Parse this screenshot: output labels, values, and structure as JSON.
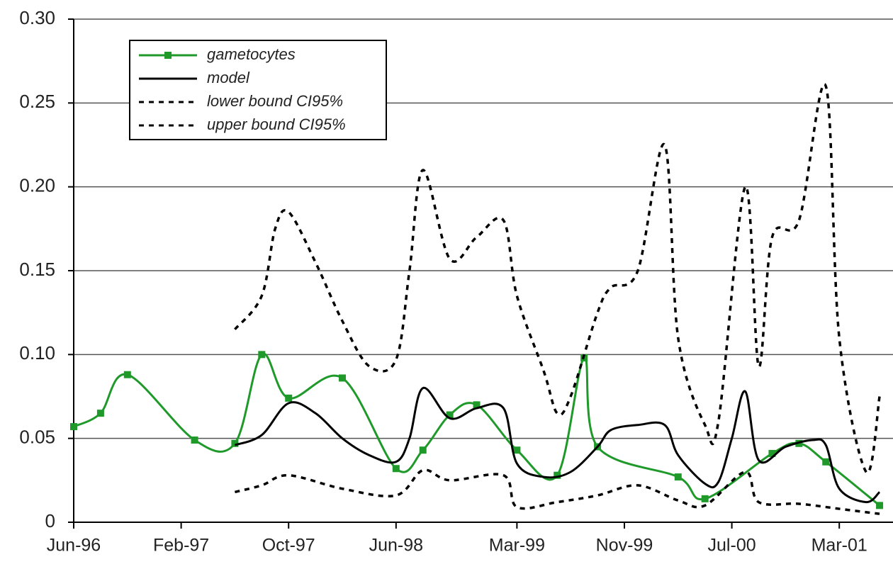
{
  "chart_data": {
    "type": "line",
    "xlim": [
      "1996-06",
      "2001-07"
    ],
    "xticks": [
      {
        "value": "1996-06",
        "label": "Jun-96"
      },
      {
        "value": "1997-02",
        "label": "Feb-97"
      },
      {
        "value": "1997-10",
        "label": "Oct-97"
      },
      {
        "value": "1998-06",
        "label": "Jun-98"
      },
      {
        "value": "1999-03",
        "label": "Mar-99"
      },
      {
        "value": "1999-11",
        "label": "Nov-99"
      },
      {
        "value": "2000-07",
        "label": "Jul-00"
      },
      {
        "value": "2001-03",
        "label": "Mar-01"
      }
    ],
    "ylim": [
      0,
      0.3
    ],
    "yticks": [
      0,
      0.05,
      {
        "value": 0.1,
        "label": "0.10"
      },
      0.15,
      {
        "value": 0.2,
        "label": "0.20"
      },
      0.25,
      {
        "value": 0.3,
        "label": "0.30"
      }
    ],
    "grid": true,
    "legend": "upper left",
    "series": [
      {
        "name": "gametocytes",
        "color": "#1f9a2a",
        "marker": "square",
        "dash": "solid",
        "x": [
          "1996-06",
          "1996-08",
          "1996-10",
          "1997-03",
          "1997-06",
          "1997-08",
          "1997-10",
          "1998-02",
          "1998-06",
          "1998-08",
          "1998-10",
          "1998-12",
          "1999-03",
          "1999-06",
          "1999-08",
          "1999-09",
          "2000-03",
          "2000-05",
          "2000-10",
          "2000-12",
          "2001-02",
          "2001-06"
        ],
        "values": [
          0.057,
          0.065,
          0.088,
          0.049,
          0.047,
          0.1,
          0.074,
          0.086,
          0.032,
          0.043,
          0.064,
          0.07,
          0.043,
          0.028,
          0.098,
          0.045,
          0.027,
          0.014,
          0.041,
          0.047,
          0.036,
          0.01
        ]
      },
      {
        "name": "model",
        "color": "#000000",
        "marker": "none",
        "dash": "solid",
        "x": [
          "1997-06",
          "1997-08",
          "1997-10",
          "1997-12",
          "1998-02",
          "1998-04",
          "1998-06",
          "1998-07",
          "1998-08",
          "1998-10",
          "1998-12",
          "1999-02",
          "1999-03",
          "1999-05",
          "1999-07",
          "1999-09",
          "1999-10",
          "1999-12",
          "2000-02",
          "2000-03",
          "2000-05",
          "2000-06",
          "2000-07",
          "2000-08",
          "2000-09",
          "2000-11",
          "2001-01",
          "2001-02",
          "2001-03",
          "2001-05",
          "2001-06"
        ],
        "values": [
          0.046,
          0.052,
          0.071,
          0.065,
          0.05,
          0.04,
          0.036,
          0.05,
          0.08,
          0.062,
          0.068,
          0.068,
          0.035,
          0.027,
          0.03,
          0.045,
          0.055,
          0.058,
          0.058,
          0.04,
          0.023,
          0.024,
          0.05,
          0.078,
          0.037,
          0.045,
          0.049,
          0.046,
          0.02,
          0.012,
          0.018
        ]
      },
      {
        "name": "lower bound CI95%",
        "color": "#000000",
        "marker": "none",
        "dash": "dotted",
        "x": [
          "1997-06",
          "1997-08",
          "1997-10",
          "1998-02",
          "1998-06",
          "1998-08",
          "1998-10",
          "1999-02",
          "1999-03",
          "1999-06",
          "1999-09",
          "1999-12",
          "2000-03",
          "2000-05",
          "2000-08",
          "2000-09",
          "2000-12",
          "2001-03",
          "2001-06"
        ],
        "values": [
          0.018,
          0.022,
          0.028,
          0.02,
          0.016,
          0.031,
          0.025,
          0.028,
          0.009,
          0.012,
          0.016,
          0.022,
          0.013,
          0.01,
          0.03,
          0.012,
          0.011,
          0.008,
          0.005
        ]
      },
      {
        "name": "upper bound CI95%",
        "color": "#000000",
        "marker": "none",
        "dash": "dotted",
        "x": [
          "1997-06",
          "1997-08",
          "1997-09",
          "1997-10",
          "1997-12",
          "1998-02",
          "1998-04",
          "1998-06",
          "1998-07",
          "1998-08",
          "1998-10",
          "1998-12",
          "1999-02",
          "1999-03",
          "1999-05",
          "1999-06",
          "1999-07",
          "1999-09",
          "1999-10",
          "1999-12",
          "2000-02",
          "2000-03",
          "2000-05",
          "2000-06",
          "2000-08",
          "2000-09",
          "2000-10",
          "2000-12",
          "2001-02",
          "2001-03",
          "2001-05",
          "2001-06"
        ],
        "values": [
          0.115,
          0.135,
          0.175,
          0.185,
          0.155,
          0.12,
          0.093,
          0.097,
          0.15,
          0.21,
          0.157,
          0.17,
          0.18,
          0.135,
          0.09,
          0.065,
          0.075,
          0.125,
          0.14,
          0.15,
          0.225,
          0.11,
          0.058,
          0.06,
          0.2,
          0.093,
          0.17,
          0.18,
          0.26,
          0.11,
          0.03,
          0.075
        ]
      }
    ]
  }
}
